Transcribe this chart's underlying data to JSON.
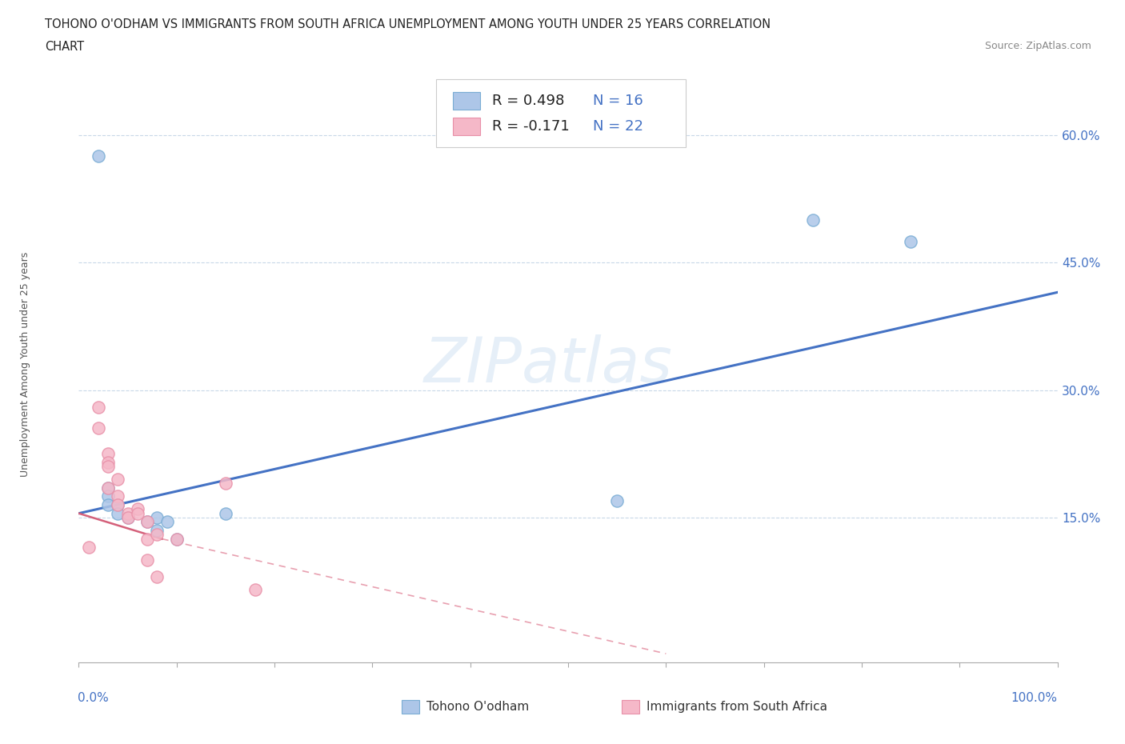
{
  "title_line1": "TOHONO O'ODHAM VS IMMIGRANTS FROM SOUTH AFRICA UNEMPLOYMENT AMONG YOUTH UNDER 25 YEARS CORRELATION",
  "title_line2": "CHART",
  "source_text": "Source: ZipAtlas.com",
  "ylabel": "Unemployment Among Youth under 25 years",
  "xlim": [
    0.0,
    1.0
  ],
  "ylim": [
    -0.02,
    0.68
  ],
  "y_tick_labels_right": [
    "15.0%",
    "30.0%",
    "45.0%",
    "60.0%"
  ],
  "y_tick_values_right": [
    0.15,
    0.3,
    0.45,
    0.6
  ],
  "color_blue_fill": "#adc6e8",
  "color_blue_edge": "#7aadd4",
  "color_pink_fill": "#f5b8c8",
  "color_pink_edge": "#e890a8",
  "color_trendline_blue": "#4472c4",
  "color_trendline_pink": "#d4607a",
  "color_trendline_pink_dash": "#e8a0b0",
  "R_blue": 0.498,
  "N_blue": 16,
  "R_pink": -0.171,
  "N_pink": 22,
  "scatter_blue_x": [
    0.02,
    0.55,
    0.75,
    0.15,
    0.03,
    0.03,
    0.03,
    0.04,
    0.04,
    0.05,
    0.07,
    0.08,
    0.08,
    0.09,
    0.1,
    0.85
  ],
  "scatter_blue_y": [
    0.575,
    0.17,
    0.5,
    0.155,
    0.185,
    0.175,
    0.165,
    0.165,
    0.155,
    0.15,
    0.145,
    0.15,
    0.135,
    0.145,
    0.125,
    0.475
  ],
  "scatter_pink_x": [
    0.01,
    0.02,
    0.02,
    0.03,
    0.03,
    0.03,
    0.03,
    0.04,
    0.04,
    0.04,
    0.05,
    0.05,
    0.06,
    0.06,
    0.07,
    0.07,
    0.07,
    0.08,
    0.08,
    0.1,
    0.15,
    0.18
  ],
  "scatter_pink_y": [
    0.115,
    0.28,
    0.255,
    0.225,
    0.215,
    0.21,
    0.185,
    0.195,
    0.175,
    0.165,
    0.155,
    0.15,
    0.16,
    0.155,
    0.145,
    0.125,
    0.1,
    0.08,
    0.13,
    0.125,
    0.19,
    0.065
  ],
  "trendline_blue_x0": 0.0,
  "trendline_blue_y0": 0.155,
  "trendline_blue_x1": 1.0,
  "trendline_blue_y1": 0.415,
  "trendline_pink_solid_x0": 0.0,
  "trendline_pink_solid_y0": 0.155,
  "trendline_pink_solid_x1": 0.085,
  "trendline_pink_solid_y1": 0.125,
  "trendline_pink_dash_x0": 0.085,
  "trendline_pink_dash_y0": 0.125,
  "trendline_pink_dash_x1": 0.6,
  "trendline_pink_dash_y1": -0.01,
  "watermark": "ZIPatlas",
  "background_color": "#ffffff",
  "grid_color": "#c8d8e8",
  "legend_label_blue": "Tohono O'odham",
  "legend_label_pink": "Immigrants from South Africa"
}
